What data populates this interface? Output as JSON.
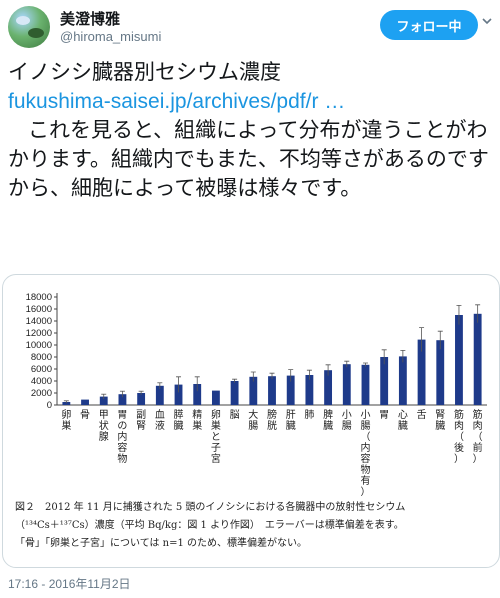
{
  "user": {
    "display_name": "美澄博雅",
    "handle": "@hiroma_misumi",
    "follow_label": "フォロー中"
  },
  "tweet": {
    "title": "イノシシ臓器別セシウム濃度",
    "link_text": "fukushima-saisei.jp/archives/pdf/r …",
    "body": "これを見ると、組織によって分布が違うことがわかります。組織内でもまた、不均等さがあるのですから、細胞によって被曝は様々です。"
  },
  "figure": {
    "caption_lines": [
      "図２　2012 年 11 月に捕獲された 5 頭のイノシシにおける各臓器中の放射性セシウム",
      "（¹³⁴Cs＋¹³⁷Cs）濃度（平均 Bq/kg：図 1 より作図）　エラーバーは標準偏差を表す。",
      "「骨」「卵巣と子宮」については n=1 のため、標準偏差がない。"
    ]
  },
  "timestamp": "17:16 - 2016年11月2日",
  "colors": {
    "accent": "#1da1f2",
    "link": "#1b95e0",
    "bar": "#1e3a8a"
  },
  "icons": {
    "menu": "chevron-down-icon"
  },
  "chart_data": {
    "type": "bar",
    "categories": [
      "卵巣",
      "骨",
      "甲状腺",
      "胃の内容物",
      "副腎",
      "血液",
      "膵臓",
      "精巣",
      "卵巣と子宮",
      "脳",
      "大腸",
      "膀胱",
      "肝臓",
      "肺",
      "脾臓",
      "小腸",
      "小腸（内容物有）",
      "胃",
      "心臓",
      "舌",
      "腎臓",
      "筋肉（後）",
      "筋肉（前）"
    ],
    "values": [
      500,
      900,
      1400,
      1800,
      2000,
      3200,
      3400,
      3500,
      2400,
      4000,
      4700,
      4800,
      4900,
      5000,
      5800,
      6800,
      6700,
      8000,
      8100,
      10900,
      10800,
      15000,
      15200
    ],
    "errors": [
      200,
      0,
      400,
      500,
      300,
      500,
      1300,
      1200,
      0,
      300,
      800,
      500,
      1000,
      800,
      900,
      500,
      300,
      1200,
      1000,
      2000,
      1500,
      1600,
      1500
    ],
    "yticks": [
      0,
      2000,
      4000,
      6000,
      8000,
      10000,
      12000,
      14000,
      16000,
      18000
    ],
    "ylim": [
      0,
      18000
    ],
    "title": "",
    "xlabel": "",
    "ylabel": "",
    "grid": false,
    "legend": ""
  }
}
